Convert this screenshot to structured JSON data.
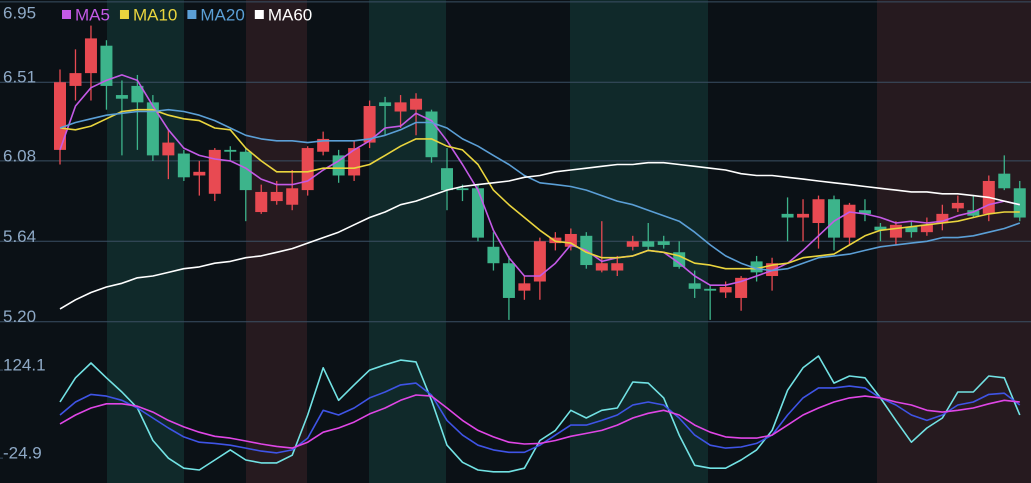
{
  "chart_data": [
    {
      "type": "candlestick",
      "up_color": "#e84a52",
      "down_color": "#3db48b",
      "open": [
        6.14,
        6.49,
        6.56,
        6.71,
        6.44,
        6.49,
        6.4,
        6.11,
        6.12,
        6.0,
        5.9,
        6.14,
        6.13,
        5.8,
        5.86,
        5.84,
        5.92,
        6.13,
        6.11,
        6.0,
        6.18,
        6.4,
        6.35,
        6.36,
        6.35,
        6.04,
        5.93,
        5.93,
        5.61,
        5.52,
        5.37,
        5.42,
        5.63,
        5.61,
        5.67,
        5.48,
        5.48,
        5.61,
        5.64,
        5.64,
        5.58,
        5.41,
        5.38,
        5.36,
        5.33,
        5.53,
        5.45,
        5.79,
        5.77,
        5.74,
        5.87,
        5.66,
        5.81,
        5.72,
        5.66,
        5.72,
        5.69,
        5.74,
        5.82,
        5.81,
        5.79,
        6.01,
        5.93
      ],
      "high": [
        6.58,
        6.69,
        6.82,
        6.74,
        6.52,
        6.55,
        6.44,
        6.25,
        6.14,
        6.08,
        6.15,
        6.16,
        6.15,
        5.95,
        5.97,
        6.03,
        6.16,
        6.24,
        6.14,
        6.19,
        6.41,
        6.43,
        6.44,
        6.45,
        6.36,
        6.15,
        5.95,
        5.95,
        5.69,
        5.56,
        5.45,
        5.66,
        5.69,
        5.71,
        5.69,
        5.75,
        5.56,
        5.67,
        5.74,
        5.67,
        5.64,
        5.48,
        5.4,
        5.42,
        5.45,
        5.56,
        5.55,
        5.88,
        5.87,
        5.89,
        5.89,
        5.85,
        5.87,
        5.74,
        5.75,
        5.75,
        5.77,
        5.84,
        5.89,
        5.89,
        6.0,
        6.11,
        5.97
      ],
      "low": [
        6.06,
        6.41,
        6.41,
        6.36,
        6.11,
        6.14,
        6.08,
        5.98,
        5.97,
        5.89,
        5.86,
        6.08,
        5.75,
        5.79,
        5.84,
        5.81,
        5.89,
        6.11,
        5.96,
        5.97,
        6.15,
        6.22,
        6.26,
        6.22,
        6.07,
        5.81,
        5.86,
        5.64,
        5.48,
        5.21,
        5.32,
        5.32,
        5.59,
        5.59,
        5.49,
        5.47,
        5.45,
        5.59,
        5.59,
        5.6,
        5.49,
        5.33,
        5.21,
        5.33,
        5.26,
        5.42,
        5.37,
        5.64,
        5.64,
        5.6,
        5.59,
        5.62,
        5.75,
        5.64,
        5.62,
        5.66,
        5.67,
        5.7,
        5.8,
        5.77,
        5.75,
        5.92,
        5.75
      ],
      "close": [
        6.51,
        6.56,
        6.75,
        6.49,
        6.42,
        6.4,
        6.11,
        6.18,
        5.99,
        6.02,
        6.14,
        6.13,
        5.92,
        5.91,
        5.91,
        5.93,
        6.15,
        6.2,
        6.0,
        6.15,
        6.38,
        6.38,
        6.4,
        6.42,
        6.1,
        5.92,
        5.92,
        5.66,
        5.52,
        5.33,
        5.41,
        5.64,
        5.66,
        5.68,
        5.51,
        5.52,
        5.52,
        5.64,
        5.61,
        5.62,
        5.5,
        5.38,
        5.37,
        5.39,
        5.44,
        5.47,
        5.52,
        5.77,
        5.79,
        5.87,
        5.66,
        5.84,
        5.79,
        5.7,
        5.73,
        5.69,
        5.73,
        5.79,
        5.85,
        5.78,
        5.97,
        5.93,
        5.77
      ],
      "series": [
        {
          "name": "MA5",
          "color": "#c45ae6",
          "values": [
            6.14,
            6.38,
            6.48,
            6.52,
            6.55,
            6.52,
            6.38,
            6.25,
            6.15,
            6.11,
            6.09,
            6.08,
            6.04,
            5.98,
            5.95,
            5.95,
            5.97,
            6.03,
            6.08,
            6.14,
            6.19,
            6.26,
            6.27,
            6.34,
            6.3,
            6.19,
            6.06,
            5.92,
            5.7,
            5.55,
            5.45,
            5.45,
            5.52,
            5.62,
            5.59,
            5.53,
            5.55,
            5.56,
            5.59,
            5.58,
            5.52,
            5.45,
            5.4,
            5.4,
            5.42,
            5.45,
            5.48,
            5.52,
            5.59,
            5.67,
            5.75,
            5.8,
            5.79,
            5.77,
            5.74,
            5.75,
            5.74,
            5.75,
            5.78,
            5.8,
            5.84,
            5.86,
            5.84
          ]
        },
        {
          "name": "MA10",
          "color": "#ead53e",
          "values": [
            6.26,
            6.25,
            6.27,
            6.31,
            6.35,
            6.36,
            6.36,
            6.33,
            6.31,
            6.3,
            6.26,
            6.25,
            6.15,
            6.08,
            6.02,
            6.02,
            6.02,
            6.04,
            6.04,
            6.04,
            6.06,
            6.11,
            6.16,
            6.2,
            6.2,
            6.16,
            6.14,
            6.06,
            5.92,
            5.84,
            5.77,
            5.7,
            5.64,
            5.63,
            5.58,
            5.55,
            5.55,
            5.56,
            5.59,
            5.58,
            5.56,
            5.52,
            5.51,
            5.49,
            5.49,
            5.49,
            5.51,
            5.52,
            5.55,
            5.56,
            5.57,
            5.62,
            5.67,
            5.7,
            5.71,
            5.72,
            5.73,
            5.74,
            5.75,
            5.77,
            5.79,
            5.8,
            5.8
          ]
        },
        {
          "name": "MA20",
          "color": "#5b9fd6",
          "values": [
            6.26,
            6.29,
            6.31,
            6.33,
            6.34,
            6.35,
            6.35,
            6.36,
            6.35,
            6.33,
            6.3,
            6.26,
            6.22,
            6.2,
            6.19,
            6.19,
            6.18,
            6.19,
            6.19,
            6.19,
            6.2,
            6.22,
            6.25,
            6.29,
            6.29,
            6.26,
            6.2,
            6.16,
            6.11,
            6.06,
            6.0,
            5.96,
            5.95,
            5.94,
            5.92,
            5.89,
            5.86,
            5.84,
            5.81,
            5.78,
            5.75,
            5.69,
            5.62,
            5.56,
            5.52,
            5.49,
            5.48,
            5.49,
            5.52,
            5.55,
            5.56,
            5.57,
            5.59,
            5.61,
            5.62,
            5.63,
            5.64,
            5.66,
            5.66,
            5.67,
            5.69,
            5.71,
            5.74
          ]
        },
        {
          "name": "MA60",
          "color": "#ffffff",
          "values": [
            5.27,
            5.32,
            5.36,
            5.39,
            5.41,
            5.44,
            5.45,
            5.47,
            5.49,
            5.5,
            5.52,
            5.53,
            5.55,
            5.56,
            5.58,
            5.6,
            5.63,
            5.66,
            5.69,
            5.73,
            5.77,
            5.8,
            5.84,
            5.86,
            5.89,
            5.92,
            5.94,
            5.95,
            5.96,
            5.97,
            5.99,
            6.0,
            6.02,
            6.03,
            6.04,
            6.05,
            6.06,
            6.06,
            6.07,
            6.07,
            6.06,
            6.05,
            6.04,
            6.03,
            6.01,
            6.0,
            6.0,
            5.99,
            5.98,
            5.97,
            5.96,
            5.95,
            5.94,
            5.93,
            5.92,
            5.91,
            5.91,
            5.9,
            5.9,
            5.89,
            5.88,
            5.86,
            5.84
          ]
        }
      ],
      "ylim": [
        5.1,
        6.96
      ],
      "yticks": [
        6.95,
        6.51,
        6.08,
        5.64,
        {
          "value": 5.2,
          "label": "5.20"
        }
      ],
      "grid": true
    },
    {
      "type": "line",
      "series": [
        {
          "color": "#72e2e4",
          "values": [
            70,
            111,
            136,
            111,
            87,
            60,
            5,
            -25,
            -42,
            -45,
            -28,
            -11,
            -28,
            -33,
            -33,
            -20,
            48,
            128,
            73,
            99,
            124,
            133,
            141,
            138,
            73,
            -3,
            -32,
            -45,
            -48,
            -48,
            -42,
            5,
            22,
            56,
            43,
            56,
            60,
            104,
            102,
            77,
            14,
            -37,
            -42,
            -42,
            -28,
            -11,
            22,
            90,
            128,
            148,
            102,
            114,
            111,
            77,
            39,
            2,
            26,
            43,
            87,
            87,
            114,
            111,
            48
          ]
        },
        {
          "color": "#3f54e6",
          "values": [
            48,
            70,
            83,
            80,
            73,
            60,
            43,
            26,
            11,
            2,
            0,
            -3,
            -8,
            -13,
            -16,
            -11,
            9,
            56,
            48,
            60,
            77,
            87,
            99,
            102,
            82,
            39,
            14,
            -3,
            -11,
            -15,
            -15,
            -3,
            14,
            31,
            31,
            39,
            48,
            65,
            70,
            65,
            43,
            14,
            -3,
            -8,
            -6,
            0,
            14,
            48,
            77,
            94,
            94,
            97,
            94,
            77,
            65,
            48,
            39,
            48,
            65,
            70,
            83,
            85,
            65
          ]
        },
        {
          "color": "#e046e6",
          "values": [
            33,
            48,
            60,
            67,
            67,
            63,
            53,
            39,
            28,
            19,
            12,
            9,
            4,
            -1,
            -5,
            -8,
            2,
            19,
            26,
            36,
            50,
            60,
            73,
            82,
            80,
            60,
            39,
            22,
            11,
            2,
            -1,
            0,
            5,
            12,
            17,
            22,
            31,
            43,
            51,
            56,
            48,
            31,
            19,
            11,
            9,
            9,
            14,
            31,
            48,
            60,
            70,
            77,
            80,
            77,
            70,
            65,
            56,
            53,
            56,
            60,
            67,
            73,
            70
          ]
        }
      ],
      "ylim": [
        -67,
        175
      ],
      "yticks": [
        124.1,
        -24.9
      ]
    }
  ]
}
